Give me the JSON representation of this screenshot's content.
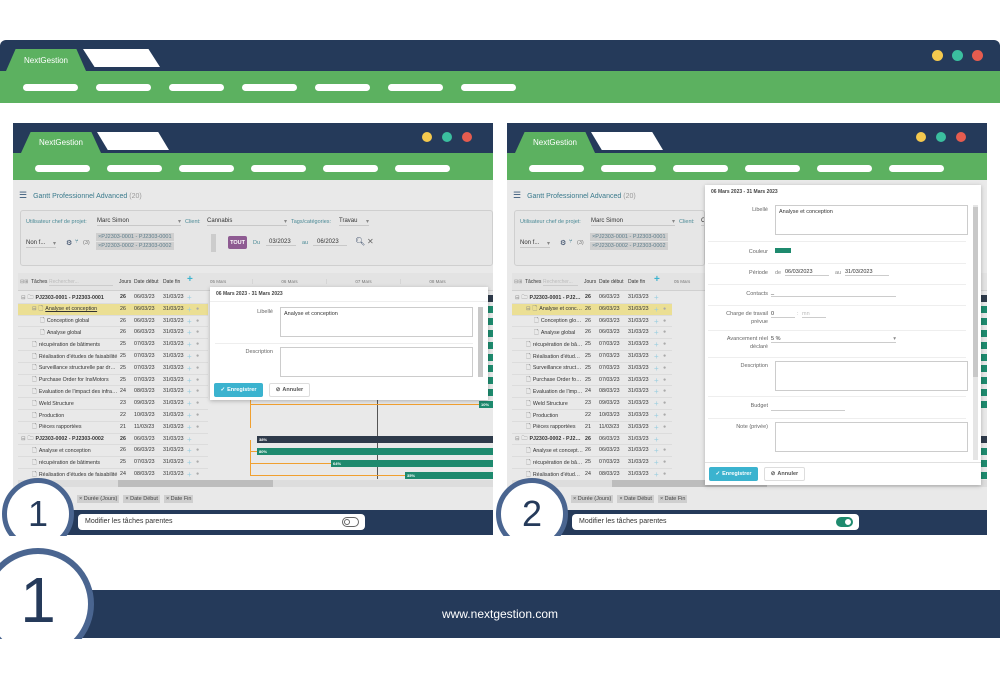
{
  "brand": "NextGestion",
  "colors": {
    "navy": "#253a5a",
    "green": "#5cb160",
    "dot_yellow": "#f5c94e",
    "dot_teal": "#3bbf9f",
    "dot_red": "#e65c4f",
    "bar_green": "#1e8a6e",
    "bar_dark": "#2e3a4a",
    "link": "#f0a030",
    "tout": "#8e5b92",
    "save": "#3bb3cf"
  },
  "footer": {
    "url": "www.nextgestion.com",
    "big_number": "1"
  },
  "gantt": {
    "title": "Gantt Professionnel Advanced",
    "count": "(20)",
    "filters": {
      "chef_label": "Utilisateur chef de projet:",
      "chef_value": "Marc Simon",
      "client_label": "Client:",
      "client_value": "Cannabis",
      "tags_label": "Tags/catégories:",
      "tags_value": "Travau",
      "status_value": "Non f...",
      "tree_count": "(3)",
      "projects": [
        "×PJ2303-0001 - PJ2303-0001",
        "×PJ2303-0002 - PJ2303-0002"
      ],
      "tout": "TOUT",
      "du_label": "Du",
      "du_value": "03/2023",
      "au_label": "au",
      "au_value": "06/2023"
    },
    "columns": {
      "tasks": "Tâches",
      "search_placeholder": "Rechercher...",
      "days": "Jours",
      "start": "Date début",
      "end": "Date fin"
    },
    "timeline": [
      "05 Mars",
      "06 Mars",
      "07 Mars",
      "08 Mars"
    ],
    "rows": [
      {
        "name": "PJ2303-0001 - PJ2303-0001",
        "days": "26",
        "start": "06/03/23",
        "end": "31/03/23",
        "type": "project",
        "level": 0
      },
      {
        "name": "Analyse et conception",
        "days": "26",
        "start": "06/03/23",
        "end": "31/03/23",
        "type": "task",
        "level": 1,
        "selected": true
      },
      {
        "name": "Conception global",
        "days": "26",
        "start": "06/03/23",
        "end": "31/03/23",
        "type": "task",
        "level": 2
      },
      {
        "name": "Analyse global",
        "days": "26",
        "start": "06/03/23",
        "end": "31/03/23",
        "type": "task",
        "level": 2
      },
      {
        "name": "récupération de bâtiments",
        "days": "25",
        "start": "07/03/23",
        "end": "31/03/23",
        "type": "task",
        "level": 1
      },
      {
        "name": "Réalisation d'études de faisabilité",
        "days": "25",
        "start": "07/03/23",
        "end": "31/03/23",
        "type": "task",
        "level": 1
      },
      {
        "name": "Surveillance structurelle par drone",
        "days": "25",
        "start": "07/03/23",
        "end": "31/03/23",
        "type": "task",
        "level": 1
      },
      {
        "name": "Purchase Order for InsMotors",
        "days": "25",
        "start": "07/03/23",
        "end": "31/03/23",
        "type": "task",
        "level": 1
      },
      {
        "name": "Evaluation de l'impact des infrastructures",
        "days": "24",
        "start": "08/03/23",
        "end": "31/03/23",
        "type": "task",
        "level": 1
      },
      {
        "name": "Weld Structure",
        "days": "23",
        "start": "09/03/23",
        "end": "31/03/23",
        "type": "task",
        "level": 1,
        "progress": "10%"
      },
      {
        "name": "Production",
        "days": "22",
        "start": "10/03/23",
        "end": "31/03/23",
        "type": "task",
        "level": 1
      },
      {
        "name": "Pièces rapportées",
        "days": "21",
        "start": "11/03/23",
        "end": "31/03/23",
        "type": "task",
        "level": 1
      },
      {
        "name": "PJ2303-0002 - PJ2303-0002",
        "days": "26",
        "start": "06/03/23",
        "end": "31/03/23",
        "type": "project",
        "level": 0,
        "progress": "38%"
      },
      {
        "name": "Analyse et conception",
        "days": "26",
        "start": "06/03/23",
        "end": "31/03/23",
        "type": "task",
        "level": 1,
        "progress": "80%"
      },
      {
        "name": "récupération de bâtiments",
        "days": "25",
        "start": "07/03/23",
        "end": "31/03/23",
        "type": "task",
        "level": 1,
        "progress": "64%"
      },
      {
        "name": "Réalisation d'études de faisabilité",
        "days": "24",
        "start": "08/03/23",
        "end": "31/03/23",
        "type": "task",
        "level": 1,
        "progress": "35%"
      }
    ],
    "bottom_tags": [
      "× Durée (Jours)",
      "× Date Début",
      "× Date Fin"
    ]
  },
  "panel1": {
    "number": "1",
    "toggle_label": "Modifier les tâches parentes",
    "toggle_on": false,
    "modal": {
      "title": "06 Mars 2023 - 31 Mars 2023",
      "libelle_label": "Libellé",
      "libelle_value": "Analyse et conception",
      "description_label": "Description",
      "save": "Enregistrer",
      "cancel": "Annuler"
    }
  },
  "panel2": {
    "number": "2",
    "toggle_label": "Modifier les tâches parentes",
    "toggle_on": true,
    "modal": {
      "title": "06 Mars 2023 - 31 Mars 2023",
      "libelle_label": "Libellé",
      "libelle_value": "Analyse et conception",
      "couleur_label": "Couleur",
      "couleur_value": "#1e8a6e",
      "periode_label": "Période",
      "de_label": "de",
      "de_value": "06/03/2023",
      "au_label": "au",
      "au_value": "31/03/2023",
      "contacts_label": "Contacts",
      "contacts_value": "_",
      "charge_label": "Charge de travail prévue",
      "charge_value": "0",
      "charge_mn_placeholder": "mn",
      "avancement_label": "Avancement réel déclaré",
      "avancement_value": "5 %",
      "description_label": "Description",
      "budget_label": "Budget",
      "note_label": "Note (privée)",
      "save": "Enregistrer",
      "cancel": "Annuler"
    }
  }
}
